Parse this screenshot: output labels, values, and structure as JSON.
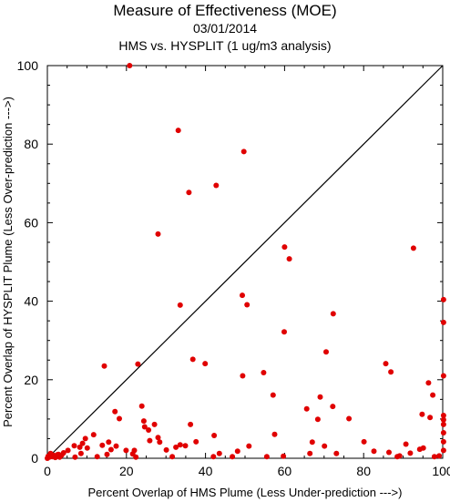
{
  "chart_data": {
    "type": "scatter",
    "title": "Measure of Effectiveness (MOE)",
    "subtitle_date": "03/01/2014",
    "subtitle_analysis": "HMS vs. HYSPLIT  (1 ug/m3 analysis)",
    "xlabel": "Percent Overlap of HMS Plume (Less Under-prediction --->)",
    "ylabel": "Percent Overlap of HYSPLIT Plume (Less Over-prediction --->)",
    "xlim": [
      0,
      100
    ],
    "ylim": [
      0,
      100
    ],
    "xticks": [
      "0",
      "20",
      "40",
      "60",
      "80",
      "100"
    ],
    "yticks": [
      "0",
      "20",
      "40",
      "60",
      "80",
      "100"
    ],
    "diagonal_line": true,
    "grid": false,
    "point_color": "#e00000",
    "points": [
      [
        20.8,
        100
      ],
      [
        33.1,
        83.5
      ],
      [
        49.7,
        78.1
      ],
      [
        35.8,
        67.7
      ],
      [
        42.7,
        69.5
      ],
      [
        28,
        57.1
      ],
      [
        60,
        53.8
      ],
      [
        61.2,
        50.8
      ],
      [
        92.6,
        53.5
      ],
      [
        49.3,
        41.5
      ],
      [
        50.5,
        39.1
      ],
      [
        33.6,
        39
      ],
      [
        72.3,
        36.8
      ],
      [
        100.2,
        40.4
      ],
      [
        59.9,
        32.2
      ],
      [
        100.2,
        34.6
      ],
      [
        70.5,
        27.1
      ],
      [
        14.4,
        23.5
      ],
      [
        22.9,
        24
      ],
      [
        36.8,
        25.2
      ],
      [
        39.9,
        24.1
      ],
      [
        54.7,
        21.8
      ],
      [
        49.4,
        21
      ],
      [
        85.6,
        24.1
      ],
      [
        86.9,
        22
      ],
      [
        96.4,
        19.2
      ],
      [
        97.5,
        16.1
      ],
      [
        100.2,
        21
      ],
      [
        17.1,
        11.9
      ],
      [
        18.2,
        10.1
      ],
      [
        23.9,
        13.3
      ],
      [
        24.4,
        9.5
      ],
      [
        24.6,
        8
      ],
      [
        25.6,
        7.2
      ],
      [
        27.1,
        8.6
      ],
      [
        28,
        5.3
      ],
      [
        28.4,
        4.1
      ],
      [
        25.9,
        4.5
      ],
      [
        36.2,
        8.6
      ],
      [
        37.6,
        4.2
      ],
      [
        57.1,
        16.1
      ],
      [
        57.5,
        6.1
      ],
      [
        65.6,
        12.6
      ],
      [
        68.4,
        9.9
      ],
      [
        69,
        15.6
      ],
      [
        72.2,
        13.2
      ],
      [
        76.3,
        10.1
      ],
      [
        94.8,
        11.2
      ],
      [
        96.8,
        10.4
      ],
      [
        100.2,
        10.9
      ],
      [
        100.2,
        9.8
      ],
      [
        100.2,
        8.6
      ],
      [
        100.2,
        6.5
      ],
      [
        100.2,
        4.2
      ],
      [
        100.2,
        2
      ],
      [
        11.7,
        6
      ],
      [
        13.9,
        3.3
      ],
      [
        15.5,
        4.1
      ],
      [
        16.1,
        2.2
      ],
      [
        17.4,
        3.1
      ],
      [
        19.9,
        2
      ],
      [
        22,
        2
      ],
      [
        9.6,
        5
      ],
      [
        8.9,
        3.8
      ],
      [
        8.2,
        2.8
      ],
      [
        6.8,
        3.2
      ],
      [
        5.2,
        2
      ],
      [
        4.1,
        1.4
      ],
      [
        2.8,
        1
      ],
      [
        1.5,
        0.8
      ],
      [
        0.5,
        0.3
      ],
      [
        0,
        0
      ],
      [
        0.2,
        0.5
      ],
      [
        0.8,
        1.2
      ],
      [
        1.2,
        0.4
      ],
      [
        2,
        0.2
      ],
      [
        2.5,
        0.9
      ],
      [
        3.1,
        0.3
      ],
      [
        3.6,
        0.8
      ],
      [
        7,
        0.3
      ],
      [
        8.5,
        1.2
      ],
      [
        10.1,
        2.6
      ],
      [
        12.6,
        0.4
      ],
      [
        15.1,
        1
      ],
      [
        21.6,
        1.1
      ],
      [
        22.4,
        0.3
      ],
      [
        30.1,
        2.1
      ],
      [
        31.6,
        0.4
      ],
      [
        32.5,
        2.8
      ],
      [
        33.6,
        3.4
      ],
      [
        34.9,
        3.2
      ],
      [
        42.2,
        5.8
      ],
      [
        42,
        0.4
      ],
      [
        43.5,
        1.2
      ],
      [
        46.8,
        0.4
      ],
      [
        48.1,
        1.8
      ],
      [
        51,
        3.1
      ],
      [
        55.5,
        0.4
      ],
      [
        59.7,
        0.5
      ],
      [
        66.4,
        1.2
      ],
      [
        67,
        4.1
      ],
      [
        70.1,
        3.1
      ],
      [
        73.1,
        1.2
      ],
      [
        80.1,
        4.2
      ],
      [
        82.6,
        1.8
      ],
      [
        86.4,
        1.5
      ],
      [
        88.5,
        0.4
      ],
      [
        89.1,
        0.6
      ],
      [
        90.7,
        3.6
      ],
      [
        91.8,
        1.3
      ],
      [
        94.2,
        2.3
      ],
      [
        95.1,
        2.6
      ],
      [
        97.9,
        0.4
      ],
      [
        99.1,
        0.6
      ]
    ]
  }
}
